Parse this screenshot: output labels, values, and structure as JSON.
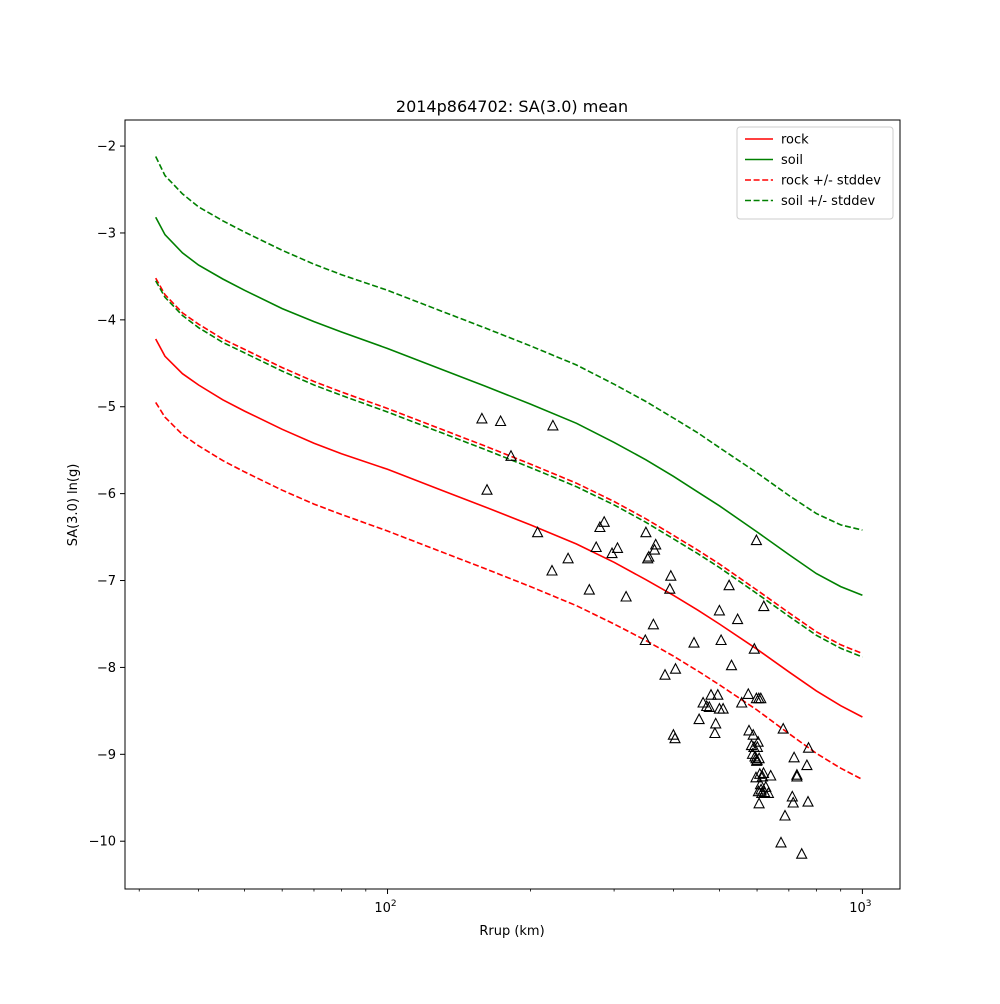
{
  "chart_data": {
    "type": "line",
    "title": "2014p864702: SA(3.0) mean",
    "xlabel": "Rrup (km)",
    "ylabel": "SA(3.0) ln(g)",
    "xscale": "log",
    "xlim": [
      28,
      1200
    ],
    "ylim": [
      -10.55,
      -1.7
    ],
    "xticks": [
      {
        "value": 100,
        "base": "10",
        "exp": "2"
      },
      {
        "value": 1000,
        "base": "10",
        "exp": "3"
      }
    ],
    "yticks": [
      -2,
      -3,
      -4,
      -5,
      -6,
      -7,
      -8,
      -9,
      -10
    ],
    "ytick_labels": [
      "−2",
      "−3",
      "−4",
      "−5",
      "−6",
      "−7",
      "−8",
      "−9",
      "−10"
    ],
    "legend_position": "top-right",
    "grid": false,
    "colors": {
      "rock": "#ff0000",
      "soil": "#008000",
      "points": "#000000"
    },
    "series": [
      {
        "name": "rock",
        "style": "solid",
        "color": "#ff0000",
        "x": [
          32.5,
          34,
          37,
          40,
          45,
          50,
          60,
          70,
          80,
          100,
          130,
          160,
          200,
          250,
          300,
          350,
          400,
          450,
          500,
          600,
          700,
          800,
          900,
          1000
        ],
        "y": [
          -4.22,
          -4.42,
          -4.62,
          -4.75,
          -4.92,
          -5.05,
          -5.26,
          -5.42,
          -5.54,
          -5.72,
          -5.96,
          -6.15,
          -6.36,
          -6.58,
          -6.79,
          -6.99,
          -7.17,
          -7.34,
          -7.5,
          -7.79,
          -8.05,
          -8.27,
          -8.44,
          -8.57
        ]
      },
      {
        "name": "soil",
        "style": "solid",
        "color": "#008000",
        "x": [
          32.5,
          34,
          37,
          40,
          45,
          50,
          60,
          70,
          80,
          100,
          130,
          160,
          200,
          250,
          300,
          350,
          400,
          450,
          500,
          600,
          700,
          800,
          900,
          1000
        ],
        "y": [
          -2.82,
          -3.02,
          -3.23,
          -3.37,
          -3.53,
          -3.66,
          -3.87,
          -4.02,
          -4.14,
          -4.33,
          -4.57,
          -4.76,
          -4.97,
          -5.19,
          -5.41,
          -5.61,
          -5.8,
          -5.98,
          -6.14,
          -6.44,
          -6.7,
          -6.92,
          -7.07,
          -7.17
        ]
      },
      {
        "name": "rock +/- stddev",
        "style": "dashed",
        "color": "#ff0000",
        "x": [
          32.5,
          34,
          37,
          40,
          45,
          50,
          60,
          70,
          80,
          100,
          130,
          160,
          200,
          250,
          300,
          350,
          400,
          450,
          500,
          600,
          700,
          800,
          900,
          1000
        ],
        "y": [
          -3.52,
          -3.71,
          -3.92,
          -4.05,
          -4.22,
          -4.34,
          -4.55,
          -4.71,
          -4.83,
          -5.02,
          -5.26,
          -5.45,
          -5.66,
          -5.88,
          -6.09,
          -6.29,
          -6.48,
          -6.65,
          -6.81,
          -7.11,
          -7.37,
          -7.59,
          -7.74,
          -7.84
        ]
      },
      {
        "name": "",
        "style": "dashed",
        "color": "#ff0000",
        "x": [
          32.5,
          34,
          37,
          40,
          45,
          50,
          60,
          70,
          80,
          100,
          130,
          160,
          200,
          250,
          300,
          350,
          400,
          450,
          500,
          600,
          700,
          800,
          900,
          1000
        ],
        "y": [
          -4.95,
          -5.12,
          -5.32,
          -5.45,
          -5.62,
          -5.75,
          -5.96,
          -6.12,
          -6.24,
          -6.43,
          -6.67,
          -6.86,
          -7.07,
          -7.29,
          -7.5,
          -7.69,
          -7.87,
          -8.04,
          -8.2,
          -8.49,
          -8.76,
          -8.99,
          -9.16,
          -9.29
        ]
      },
      {
        "name": "soil +/- stddev",
        "style": "dashed",
        "color": "#008000",
        "x": [
          32.5,
          34,
          37,
          40,
          45,
          50,
          60,
          70,
          80,
          100,
          130,
          160,
          200,
          250,
          300,
          350,
          400,
          450,
          500,
          600,
          700,
          800,
          900,
          1000
        ],
        "y": [
          -2.12,
          -2.34,
          -2.55,
          -2.7,
          -2.86,
          -2.99,
          -3.2,
          -3.36,
          -3.48,
          -3.66,
          -3.9,
          -4.09,
          -4.3,
          -4.52,
          -4.74,
          -4.94,
          -5.13,
          -5.3,
          -5.47,
          -5.76,
          -6.02,
          -6.23,
          -6.36,
          -6.42
        ]
      },
      {
        "name": "",
        "style": "dashed",
        "color": "#008000",
        "x": [
          32.5,
          34,
          37,
          40,
          45,
          50,
          60,
          70,
          80,
          100,
          130,
          160,
          200,
          250,
          300,
          350,
          400,
          450,
          500,
          600,
          700,
          800,
          900,
          1000
        ],
        "y": [
          -3.55,
          -3.74,
          -3.95,
          -4.09,
          -4.26,
          -4.38,
          -4.59,
          -4.75,
          -4.87,
          -5.06,
          -5.3,
          -5.49,
          -5.7,
          -5.92,
          -6.13,
          -6.33,
          -6.52,
          -6.69,
          -6.85,
          -7.15,
          -7.41,
          -7.63,
          -7.78,
          -7.88
        ]
      }
    ],
    "legend": [
      {
        "label": "rock",
        "color": "#ff0000",
        "style": "solid"
      },
      {
        "label": "soil",
        "color": "#008000",
        "style": "solid"
      },
      {
        "label": "rock +/- stddev",
        "color": "#ff0000",
        "style": "dashed"
      },
      {
        "label": "soil +/- stddev",
        "color": "#008000",
        "style": "dashed"
      }
    ],
    "observations": {
      "marker": "triangle-open",
      "color": "#000000",
      "x": [
        158,
        173,
        223,
        182,
        162,
        207,
        222,
        240,
        266,
        275,
        280,
        286,
        297,
        305,
        318,
        350,
        355,
        353,
        365,
        367,
        395,
        393,
        363,
        349,
        384,
        404,
        400,
        403,
        442,
        453,
        462,
        470,
        476,
        480,
        489,
        491,
        496,
        500,
        504,
        509,
        524,
        530,
        546,
        557,
        575,
        577,
        584,
        587,
        589,
        591,
        594,
        597,
        600,
        601,
        603,
        606,
        608,
        610,
        612,
        614,
        616,
        619,
        622,
        626,
        634,
        641,
        592,
        598,
        605,
        611,
        620,
        681,
        687,
        715,
        718,
        728,
        745,
        764,
        768,
        674,
        728,
        598,
        712,
        770
      ],
      "y": [
        -5.14,
        -5.17,
        -5.22,
        -5.57,
        -5.96,
        -6.45,
        -6.89,
        -6.75,
        -7.11,
        -6.62,
        -6.39,
        -6.33,
        -6.69,
        -6.63,
        -7.19,
        -6.45,
        -6.73,
        -6.75,
        -6.65,
        -6.59,
        -6.95,
        -7.1,
        -7.51,
        -7.69,
        -8.09,
        -8.02,
        -8.78,
        -8.82,
        -7.72,
        -8.6,
        -8.41,
        -8.45,
        -8.46,
        -8.32,
        -8.76,
        -8.65,
        -8.32,
        -8.48,
        -7.69,
        -8.48,
        -7.06,
        -7.98,
        -7.45,
        -8.41,
        -8.31,
        -8.73,
        -8.9,
        -9.0,
        -8.78,
        -8.92,
        -9.03,
        -9.05,
        -9.07,
        -8.92,
        -8.86,
        -9.05,
        -9.23,
        -9.35,
        -9.41,
        -9.45,
        -9.26,
        -9.22,
        -9.44,
        -9.38,
        -9.45,
        -9.25,
        -7.79,
        -8.36,
        -8.36,
        -8.36,
        -7.3,
        -8.71,
        -9.71,
        -9.56,
        -9.04,
        -9.24,
        -10.15,
        -9.13,
        -9.55,
        -10.02,
        -9.26,
        -6.54,
        -9.49,
        -8.93
      ],
      "extra_x": [
        500,
        597,
        606,
        604,
        599
      ],
      "extra_y": [
        -7.35,
        -9.27,
        -9.57,
        -9.43,
        -9.08
      ]
    }
  }
}
